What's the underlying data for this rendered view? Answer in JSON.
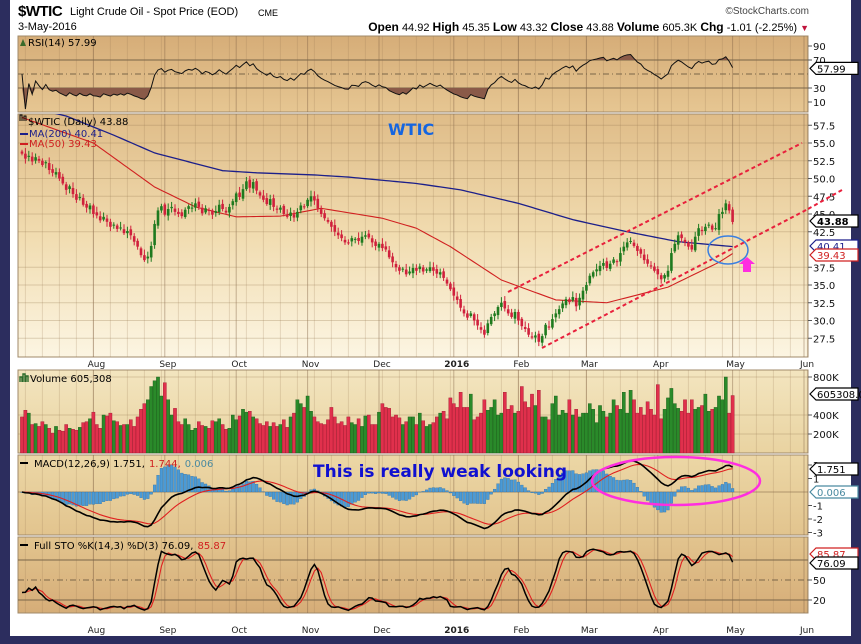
{
  "header": {
    "symbol": "$WTIC",
    "name": "Light Crude Oil - Spot Price (EOD)",
    "exchange": "CME",
    "date": "3-May-2016",
    "copyright": "©StockCharts.com",
    "quote": {
      "open_label": "Open",
      "open": "44.92",
      "high_label": "High",
      "high": "45.35",
      "low_label": "Low",
      "low": "43.32",
      "close_label": "Close",
      "close": "43.88",
      "volume_label": "Volume",
      "volume": "605.3K",
      "chg_label": "Chg",
      "chg": "-1.01 (-2.25%)",
      "chg_direction_icon": "triangle-down"
    }
  },
  "colors": {
    "frame": "#2c2d5e",
    "up_candle": "#1f7a1f",
    "down_candle": "#d0203c",
    "ma200": "#1c1f8a",
    "ma50": "#d02020",
    "macd_histogram": "#4a9ad6",
    "annotation_blue": "#1565e0",
    "annotation_magenta": "#ff2de0",
    "channel_lines": "#e8203c"
  },
  "annotations": {
    "title_note": "WTIC",
    "macd_note": "This is really weak looking"
  },
  "chart_data": {
    "type": "candlestick",
    "x_tick_labels": [
      "Aug",
      "Sep",
      "Oct",
      "Nov",
      "Dec",
      "2016",
      "Feb",
      "Mar",
      "Apr",
      "May",
      "Jun"
    ],
    "price": {
      "legend": "$WTIC (Daily) 43.88",
      "ma200_label": "MA(200) 40.41",
      "ma50_label": "MA(50) 39.43",
      "y_ticks": [
        "57.5",
        "55.0",
        "52.5",
        "50.0",
        "47.5",
        "45.0",
        "42.5",
        "37.5",
        "35.0",
        "32.5",
        "30.0",
        "27.5"
      ],
      "y_range": [
        25.5,
        59.3
      ],
      "last_close": "43.88",
      "last_ma200": "40.41",
      "last_ma50": "39.43",
      "close": [
        53.5,
        52.8,
        53.2,
        52.4,
        53.0,
        52.5,
        51.9,
        52.3,
        51.2,
        50.8,
        50.9,
        50.0,
        49.3,
        48.4,
        48.9,
        47.8,
        47.0,
        47.4,
        46.3,
        45.9,
        46.2,
        45.0,
        44.8,
        44.1,
        44.6,
        43.9,
        43.2,
        43.5,
        42.9,
        43.1,
        42.3,
        42.6,
        42.0,
        41.1,
        40.4,
        39.2,
        38.5,
        39.0,
        40.5,
        43.6,
        45.5,
        46.1,
        44.9,
        45.7,
        46.0,
        45.3,
        45.0,
        44.7,
        45.6,
        46.1,
        45.9,
        46.5,
        46.0,
        45.1,
        45.8,
        45.5,
        44.9,
        45.4,
        46.3,
        45.7,
        45.2,
        46.0,
        46.8,
        47.9,
        47.4,
        48.5,
        49.6,
        48.7,
        49.5,
        48.3,
        47.6,
        47.0,
        46.4,
        47.1,
        46.0,
        45.6,
        45.9,
        45.0,
        44.6,
        45.2,
        44.5,
        45.3,
        46.2,
        46.0,
        47.0,
        47.5,
        46.9,
        45.8,
        45.0,
        44.4,
        43.9,
        43.2,
        42.5,
        42.0,
        41.6,
        41.0,
        40.9,
        41.6,
        41.5,
        41.2,
        41.8,
        42.0,
        41.7,
        41.0,
        40.5,
        40.8,
        40.2,
        40.0,
        38.9,
        38.2,
        37.5,
        37.0,
        37.3,
        36.5,
        36.9,
        37.4,
        37.0,
        37.6,
        36.9,
        37.2,
        37.5,
        37.0,
        36.6,
        36.8,
        36.0,
        35.2,
        34.4,
        33.5,
        32.9,
        31.8,
        31.0,
        30.4,
        31.0,
        30.0,
        29.3,
        28.7,
        28.0,
        29.6,
        30.5,
        31.0,
        31.9,
        32.5,
        31.7,
        31.0,
        30.5,
        31.2,
        30.0,
        29.2,
        28.8,
        28.0,
        27.6,
        27.9,
        27.0,
        27.8,
        29.4,
        29.0,
        30.2,
        31.0,
        31.6,
        32.4,
        33.0,
        32.6,
        33.3,
        32.0,
        33.2,
        34.2,
        35.0,
        36.3,
        36.8,
        37.2,
        37.7,
        38.1,
        37.4,
        38.0,
        38.6,
        38.3,
        39.5,
        40.4,
        41.0,
        41.2,
        40.5,
        39.8,
        39.4,
        38.5,
        38.0,
        37.6,
        37.0,
        36.5,
        35.8,
        36.4,
        37.0,
        39.5,
        40.8,
        42.0,
        41.6,
        41.0,
        40.4,
        40.0,
        41.8,
        43.0,
        42.6,
        43.2,
        43.5,
        42.8,
        43.0,
        45.0,
        45.3,
        46.5,
        45.5,
        43.88
      ],
      "ma200": [
        [
          0,
          60.3
        ],
        [
          13,
          58.8
        ],
        [
          27,
          56.1
        ],
        [
          39,
          53.6
        ],
        [
          59,
          51.1
        ],
        [
          69,
          50.8
        ],
        [
          86,
          50.5
        ],
        [
          96,
          50.2
        ],
        [
          116,
          49.3
        ],
        [
          129,
          48.4
        ],
        [
          146,
          46.5
        ],
        [
          162,
          44.2
        ],
        [
          178,
          42.5
        ],
        [
          193,
          41.1
        ],
        [
          209,
          40.41
        ]
      ],
      "ma50": [
        [
          0,
          58.6
        ],
        [
          21,
          55.0
        ],
        [
          39,
          48.8
        ],
        [
          51,
          46.0
        ],
        [
          63,
          44.6
        ],
        [
          76,
          44.7
        ],
        [
          88,
          45.8
        ],
        [
          106,
          44.4
        ],
        [
          116,
          43.0
        ],
        [
          126,
          40.4
        ],
        [
          141,
          35.7
        ],
        [
          157,
          32.9
        ],
        [
          172,
          32.5
        ],
        [
          190,
          34.7
        ],
        [
          205,
          38.2
        ],
        [
          209,
          39.43
        ]
      ]
    },
    "rsi": {
      "label": "RSI(14) 57.99",
      "y_ticks": [
        "90",
        "70",
        "30",
        "10"
      ],
      "levels": [
        70,
        50,
        30
      ],
      "last": "57.99"
    },
    "volume": {
      "label": "Volume 605,308",
      "y_ticks": [
        "800K",
        "400K",
        "200K"
      ],
      "last": "605308.0",
      "values_k": [
        380,
        450,
        420,
        300,
        310,
        280,
        330,
        300,
        260,
        210,
        280,
        240,
        230,
        300,
        260,
        250,
        240,
        270,
        320,
        330,
        360,
        430,
        300,
        260,
        400,
        390,
        420,
        340,
        330,
        290,
        300,
        300,
        350,
        280,
        380,
        460,
        520,
        560,
        700,
        760,
        800,
        600,
        740,
        560,
        400,
        470,
        330,
        300,
        360,
        300,
        240,
        260,
        330,
        290,
        280,
        260,
        340,
        330,
        360,
        300,
        250,
        260,
        400,
        350,
        390,
        460,
        430,
        440,
        380,
        360,
        310,
        290,
        330,
        280,
        320,
        280,
        300,
        350,
        270,
        380,
        420,
        560,
        520,
        480,
        600,
        440,
        380,
        330,
        310,
        300,
        350,
        480,
        380,
        310,
        330,
        290,
        380,
        320,
        300,
        360,
        280,
        390,
        400,
        300,
        300,
        430,
        520,
        480,
        470,
        380,
        400,
        370,
        300,
        330,
        380,
        380,
        300,
        420,
        340,
        280,
        300,
        320,
        380,
        420,
        440,
        360,
        580,
        520,
        480,
        640,
        480,
        480,
        620,
        350,
        380,
        420,
        560,
        450,
        480,
        560,
        400,
        420,
        640,
        460,
        500,
        420,
        440,
        700,
        540,
        480,
        620,
        500,
        660,
        380,
        380,
        350,
        520,
        600,
        400,
        450,
        420,
        560,
        400,
        460,
        380,
        420,
        420,
        520,
        460,
        320,
        500,
        440,
        380,
        420,
        560,
        500,
        460,
        640,
        420,
        660,
        560,
        420,
        480,
        400,
        540,
        460,
        400,
        720,
        360,
        460,
        580,
        680,
        520,
        470,
        440,
        560,
        420,
        560,
        460,
        480,
        500,
        620,
        440,
        460,
        480,
        600,
        560,
        800,
        420,
        605
      ]
    },
    "macd": {
      "label_main": "MACD(12,26,9) 1.751,",
      "label_signal": "1.744,",
      "label_hist": "0.006",
      "y_ticks": [
        "2",
        "1",
        "-1",
        "-2",
        "-3"
      ],
      "last_macd": "1.751",
      "last_hist": "0.006"
    },
    "sto": {
      "label_main": "Full STO %K(14,3) %D(3) 76.09,",
      "label_d": "85.87",
      "y_ticks": [
        "50",
        "20"
      ],
      "levels": [
        80,
        50,
        20
      ],
      "last_k": "76.09",
      "last_d": "85.87"
    }
  }
}
